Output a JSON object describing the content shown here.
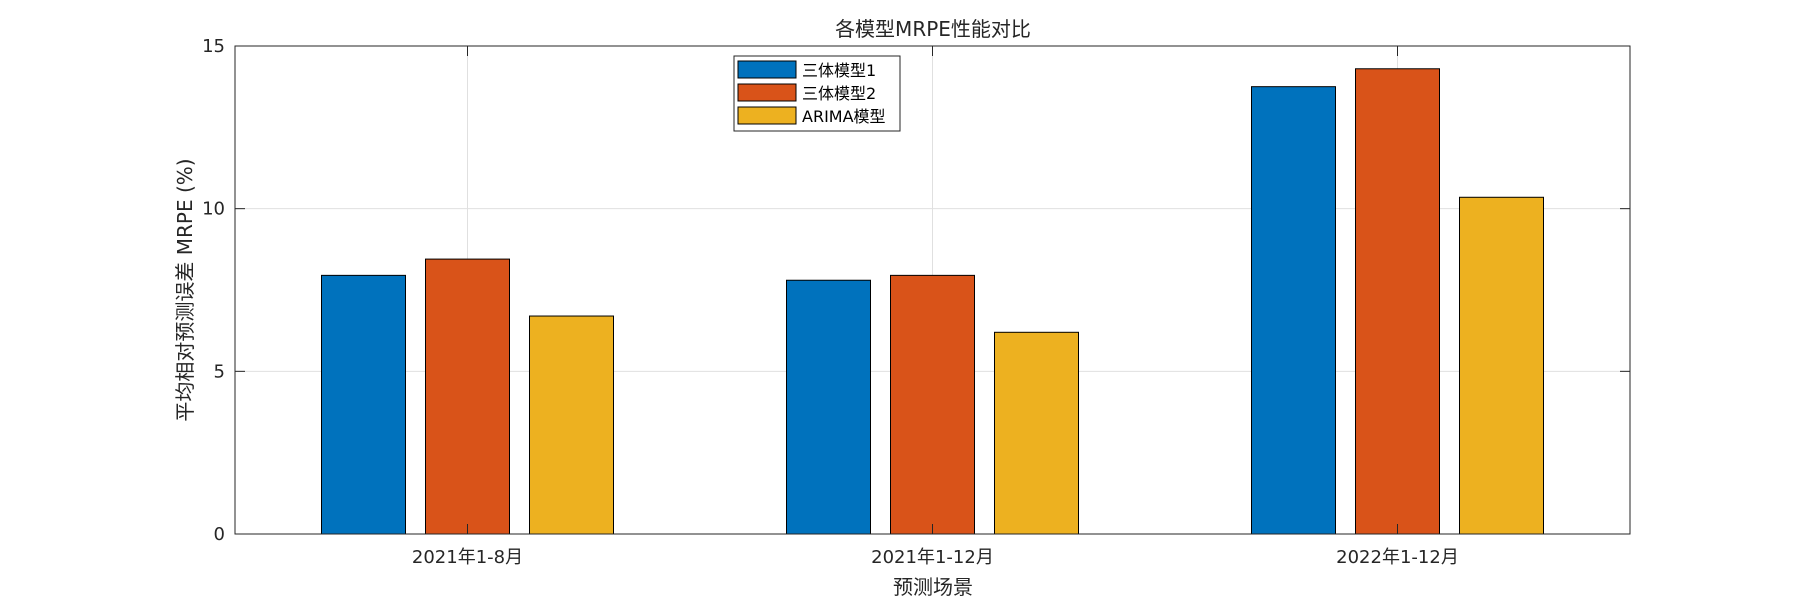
{
  "chart_data": {
    "type": "bar",
    "title": "各模型MRPE性能对比",
    "xlabel": "预测场景",
    "ylabel": "平均相对预测误差 MRPE (%)",
    "categories": [
      "2021年1-8月",
      "2021年1-12月",
      "2022年1-12月"
    ],
    "series": [
      {
        "name": "三体模型1",
        "color": "#0072BD",
        "values": [
          7.95,
          7.8,
          13.75
        ]
      },
      {
        "name": "三体模型2",
        "color": "#D95319",
        "values": [
          8.45,
          7.95,
          14.3
        ]
      },
      {
        "name": "ARIMA模型",
        "color": "#EDB120",
        "values": [
          6.7,
          6.2,
          10.35
        ]
      }
    ],
    "ylim": [
      0,
      15
    ],
    "yticks": [
      "0",
      "5",
      "10",
      "15"
    ],
    "grid": true,
    "legend_position": "top-center"
  }
}
